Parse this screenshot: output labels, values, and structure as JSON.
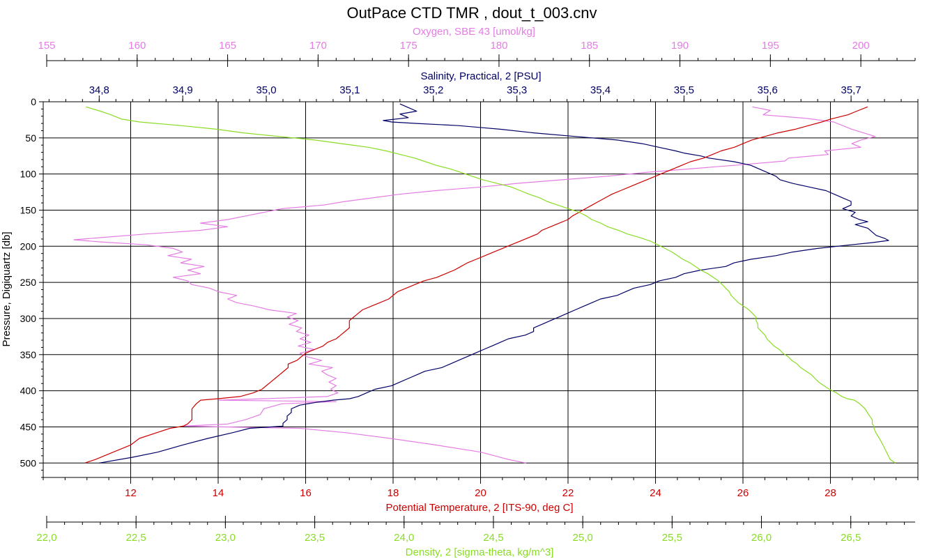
{
  "chart_data": {
    "type": "line",
    "title": "OutPace CTD TMR , dout_t_003.cnv",
    "ylabel": "Pressure, Digiquartz [db]",
    "ylim": [
      0,
      520
    ],
    "yticks": [
      "0",
      "50",
      "100",
      "150",
      "200",
      "250",
      "300",
      "350",
      "400",
      "450",
      "500"
    ],
    "grid": true,
    "colors": {
      "oxygen": "#e37ce3",
      "salinity": "#000066",
      "temperature": "#cc0000",
      "density": "#88dd22"
    },
    "axes": {
      "oxygen": {
        "label": "Oxygen, SBE 43 [umol/kg]",
        "range": [
          155.0,
          203.0
        ],
        "ticks": [
          "155",
          "160",
          "165",
          "170",
          "175",
          "180",
          "185",
          "190",
          "195",
          "200"
        ],
        "tick_values": [
          155,
          160,
          165,
          170,
          175,
          180,
          185,
          190,
          195,
          200
        ],
        "minor_step": 1
      },
      "salinity": {
        "label": "Salinity, Practical, 2 [PSU]",
        "range": [
          34.733,
          35.78
        ],
        "ticks": [
          "34,8",
          "34,9",
          "35,0",
          "35,1",
          "35,2",
          "35,3",
          "35,4",
          "35,5",
          "35,6",
          "35,7"
        ],
        "tick_values": [
          34.8,
          34.9,
          35.0,
          35.1,
          35.2,
          35.3,
          35.4,
          35.5,
          35.6,
          35.7
        ],
        "minor_step": 0.02
      },
      "temperature": {
        "label": "Potential Temperature, 2 [ITS-90, deg C]",
        "range": [
          10.0,
          30.0
        ],
        "ticks": [
          "12",
          "14",
          "16",
          "18",
          "20",
          "22",
          "24",
          "26",
          "28"
        ],
        "tick_values": [
          12,
          14,
          16,
          18,
          20,
          22,
          24,
          26,
          28
        ],
        "minor_step": 0.5
      },
      "density": {
        "label": "Density, 2 [sigma-theta, kg/m^3]",
        "range": [
          22.0,
          26.86
        ],
        "ticks": [
          "22,0",
          "22,5",
          "23,0",
          "23,5",
          "24,0",
          "24,5",
          "25,0",
          "25,5",
          "26,0",
          "26,5"
        ],
        "tick_values": [
          22.0,
          22.5,
          23.0,
          23.5,
          24.0,
          24.5,
          25.0,
          25.5,
          26.0,
          26.5
        ],
        "minor_step": 0.1
      }
    },
    "series": [
      {
        "key": "oxygen",
        "pressure": [
          7,
          12,
          18,
          23,
          28,
          38,
          48,
          53,
          58,
          63,
          68,
          73,
          78,
          82,
          88,
          93,
          98,
          103,
          108,
          113,
          118,
          123,
          128,
          133,
          138,
          143,
          148,
          153,
          158,
          163,
          168,
          173,
          178,
          183,
          188,
          191,
          194,
          198,
          203,
          208,
          213,
          218,
          223,
          228,
          233,
          238,
          243,
          248,
          253,
          258,
          263,
          268,
          273,
          278,
          283,
          288,
          293,
          298,
          303,
          308,
          313,
          318,
          323,
          328,
          333,
          338,
          343,
          348,
          353,
          358,
          363,
          368,
          373,
          378,
          383,
          388,
          393,
          398,
          403,
          408,
          411,
          413,
          415,
          418,
          425,
          433,
          440,
          446,
          449,
          452,
          458,
          466,
          475,
          485,
          495,
          500
        ],
        "values": [
          194.0,
          195.0,
          194.6,
          197.0,
          198.5,
          199.5,
          200.8,
          200.0,
          199.5,
          200.0,
          198.0,
          198.2,
          196.0,
          195.8,
          193.0,
          190.5,
          188.0,
          186.0,
          183.5,
          181.0,
          179.0,
          176.5,
          174.5,
          173.0,
          171.5,
          170.3,
          168.0,
          167.0,
          166.0,
          165.0,
          163.5,
          165.0,
          163.5,
          160.5,
          158.0,
          156.5,
          158.0,
          160.5,
          162.0,
          162.5,
          161.7,
          163.0,
          162.4,
          163.7,
          162.8,
          163.5,
          162.0,
          162.8,
          163.0,
          164.0,
          164.5,
          165.5,
          165.0,
          165.5,
          166.5,
          167.3,
          168.8,
          168.3,
          168.9,
          168.4,
          169.1,
          168.8,
          169.5,
          169.0,
          169.6,
          168.9,
          169.8,
          169.0,
          169.4,
          170.2,
          169.5,
          170.8,
          170.2,
          170.5,
          171.0,
          170.6,
          171.0,
          170.7,
          171.1,
          170.5,
          167.0,
          164.5,
          171.0,
          168.0,
          167.0,
          166.8,
          166.0,
          165.0,
          162.5,
          169.0,
          171.5,
          174.0,
          176.5,
          179.0,
          180.5,
          181.5
        ]
      },
      {
        "key": "salinity",
        "pressure": [
          3,
          8,
          13,
          17,
          22,
          26,
          28,
          30,
          33,
          36,
          38,
          43,
          48,
          53,
          58,
          63,
          68,
          71,
          75,
          78,
          83,
          88,
          93,
          98,
          103,
          108,
          113,
          118,
          123,
          128,
          133,
          138,
          143,
          148,
          153,
          158,
          163,
          166,
          170,
          175,
          180,
          185,
          189,
          192,
          195,
          198,
          203,
          208,
          213,
          218,
          223,
          228,
          233,
          238,
          243,
          248,
          253,
          258,
          263,
          268,
          273,
          278,
          283,
          288,
          293,
          298,
          303,
          308,
          313,
          318,
          323,
          328,
          333,
          338,
          343,
          348,
          353,
          358,
          363,
          368,
          373,
          378,
          383,
          388,
          393,
          398,
          403,
          408,
          411,
          413,
          416,
          420,
          425,
          430,
          435,
          440,
          445,
          449,
          452,
          458,
          466,
          475,
          485,
          492,
          500
        ],
        "values": [
          35.16,
          35.17,
          35.18,
          35.16,
          35.17,
          35.14,
          35.15,
          35.18,
          35.23,
          35.26,
          35.28,
          35.32,
          35.37,
          35.42,
          35.45,
          35.47,
          35.49,
          35.5,
          35.52,
          35.53,
          35.56,
          35.58,
          35.59,
          35.6,
          35.61,
          35.615,
          35.63,
          35.65,
          35.67,
          35.68,
          35.69,
          35.7,
          35.7,
          35.69,
          35.705,
          35.7,
          35.71,
          35.72,
          35.705,
          35.72,
          35.725,
          35.73,
          35.74,
          35.745,
          35.725,
          35.7,
          35.66,
          35.63,
          35.61,
          35.58,
          35.56,
          35.55,
          35.52,
          35.5,
          35.49,
          35.47,
          35.46,
          35.44,
          35.43,
          35.42,
          35.4,
          35.39,
          35.38,
          35.37,
          35.36,
          35.35,
          35.34,
          35.33,
          35.32,
          35.32,
          35.31,
          35.29,
          35.28,
          35.27,
          35.26,
          35.25,
          35.24,
          35.23,
          35.22,
          35.21,
          35.19,
          35.18,
          35.17,
          35.16,
          35.15,
          35.13,
          35.12,
          35.11,
          35.1,
          35.08,
          35.06,
          35.04,
          35.03,
          35.03,
          35.025,
          35.025,
          35.02,
          35.02,
          34.98,
          34.96,
          34.93,
          34.9,
          34.87,
          34.84,
          34.8
        ]
      },
      {
        "key": "temperature",
        "pressure": [
          7,
          13,
          18,
          24,
          28,
          33,
          38,
          43,
          48,
          53,
          58,
          63,
          68,
          73,
          78,
          83,
          88,
          93,
          98,
          103,
          108,
          113,
          118,
          123,
          128,
          133,
          138,
          143,
          148,
          153,
          158,
          163,
          168,
          173,
          178,
          183,
          188,
          193,
          198,
          203,
          208,
          213,
          218,
          223,
          228,
          233,
          238,
          243,
          248,
          253,
          258,
          263,
          268,
          273,
          278,
          283,
          288,
          293,
          298,
          303,
          308,
          313,
          318,
          323,
          328,
          333,
          338,
          343,
          348,
          353,
          358,
          363,
          368,
          373,
          378,
          383,
          388,
          393,
          398,
          403,
          408,
          411,
          413,
          418,
          425,
          433,
          440,
          446,
          449,
          452,
          458,
          466,
          475,
          485,
          495,
          500
        ],
        "values": [
          28.85,
          28.6,
          28.4,
          28.0,
          27.8,
          27.5,
          27.2,
          26.8,
          26.5,
          26.2,
          26.0,
          25.8,
          25.5,
          25.3,
          25.1,
          24.8,
          24.6,
          24.4,
          24.2,
          24.0,
          23.8,
          23.6,
          23.4,
          23.2,
          23.0,
          22.85,
          22.7,
          22.55,
          22.4,
          22.25,
          22.1,
          22.0,
          21.8,
          21.6,
          21.4,
          21.3,
          21.1,
          20.9,
          20.7,
          20.5,
          20.3,
          20.1,
          19.9,
          19.7,
          19.55,
          19.4,
          19.2,
          19.0,
          18.7,
          18.5,
          18.3,
          18.1,
          18.0,
          17.9,
          17.7,
          17.5,
          17.3,
          17.2,
          17.1,
          17.0,
          17.0,
          17.0,
          16.9,
          16.8,
          16.7,
          16.5,
          16.4,
          16.2,
          16.0,
          15.9,
          15.8,
          15.6,
          15.6,
          15.5,
          15.4,
          15.3,
          15.2,
          15.1,
          15.0,
          14.8,
          14.5,
          14.0,
          13.6,
          13.5,
          13.4,
          13.4,
          13.4,
          13.3,
          13.2,
          12.9,
          12.6,
          12.2,
          12.0,
          11.6,
          11.2,
          10.95
        ]
      },
      {
        "key": "density",
        "pressure": [
          7,
          13,
          18,
          24,
          28,
          33,
          38,
          43,
          48,
          53,
          58,
          63,
          68,
          73,
          78,
          83,
          88,
          93,
          98,
          103,
          108,
          113,
          118,
          123,
          128,
          133,
          138,
          143,
          148,
          153,
          158,
          163,
          168,
          173,
          178,
          183,
          188,
          193,
          198,
          203,
          208,
          213,
          218,
          223,
          228,
          233,
          238,
          243,
          248,
          253,
          258,
          263,
          268,
          273,
          278,
          283,
          288,
          293,
          298,
          303,
          308,
          313,
          318,
          323,
          328,
          333,
          338,
          343,
          348,
          353,
          358,
          363,
          368,
          373,
          378,
          383,
          388,
          393,
          398,
          403,
          408,
          411,
          413,
          418,
          425,
          433,
          440,
          446,
          449,
          452,
          458,
          466,
          475,
          485,
          495,
          500
        ],
        "values": [
          22.22,
          22.3,
          22.36,
          22.42,
          22.52,
          22.75,
          22.95,
          23.1,
          23.3,
          23.5,
          23.65,
          23.8,
          23.9,
          23.98,
          24.06,
          24.12,
          24.18,
          24.26,
          24.32,
          24.38,
          24.44,
          24.52,
          24.6,
          24.65,
          24.7,
          24.76,
          24.8,
          24.86,
          24.92,
          24.98,
          25.02,
          25.05,
          25.1,
          25.14,
          25.2,
          25.25,
          25.32,
          25.38,
          25.42,
          25.46,
          25.5,
          25.53,
          25.56,
          25.6,
          25.63,
          25.66,
          25.7,
          25.73,
          25.76,
          25.78,
          25.8,
          25.82,
          25.83,
          25.85,
          25.87,
          25.9,
          25.93,
          25.95,
          25.97,
          25.97,
          25.98,
          25.98,
          26.0,
          26.02,
          26.03,
          26.05,
          26.07,
          26.1,
          26.12,
          26.15,
          26.17,
          26.2,
          26.22,
          26.25,
          26.28,
          26.3,
          26.32,
          26.35,
          26.38,
          26.42,
          26.45,
          26.48,
          26.52,
          26.55,
          26.58,
          26.6,
          26.62,
          26.62,
          26.63,
          26.63,
          26.64,
          26.66,
          26.68,
          26.7,
          26.72,
          26.75
        ]
      }
    ]
  }
}
